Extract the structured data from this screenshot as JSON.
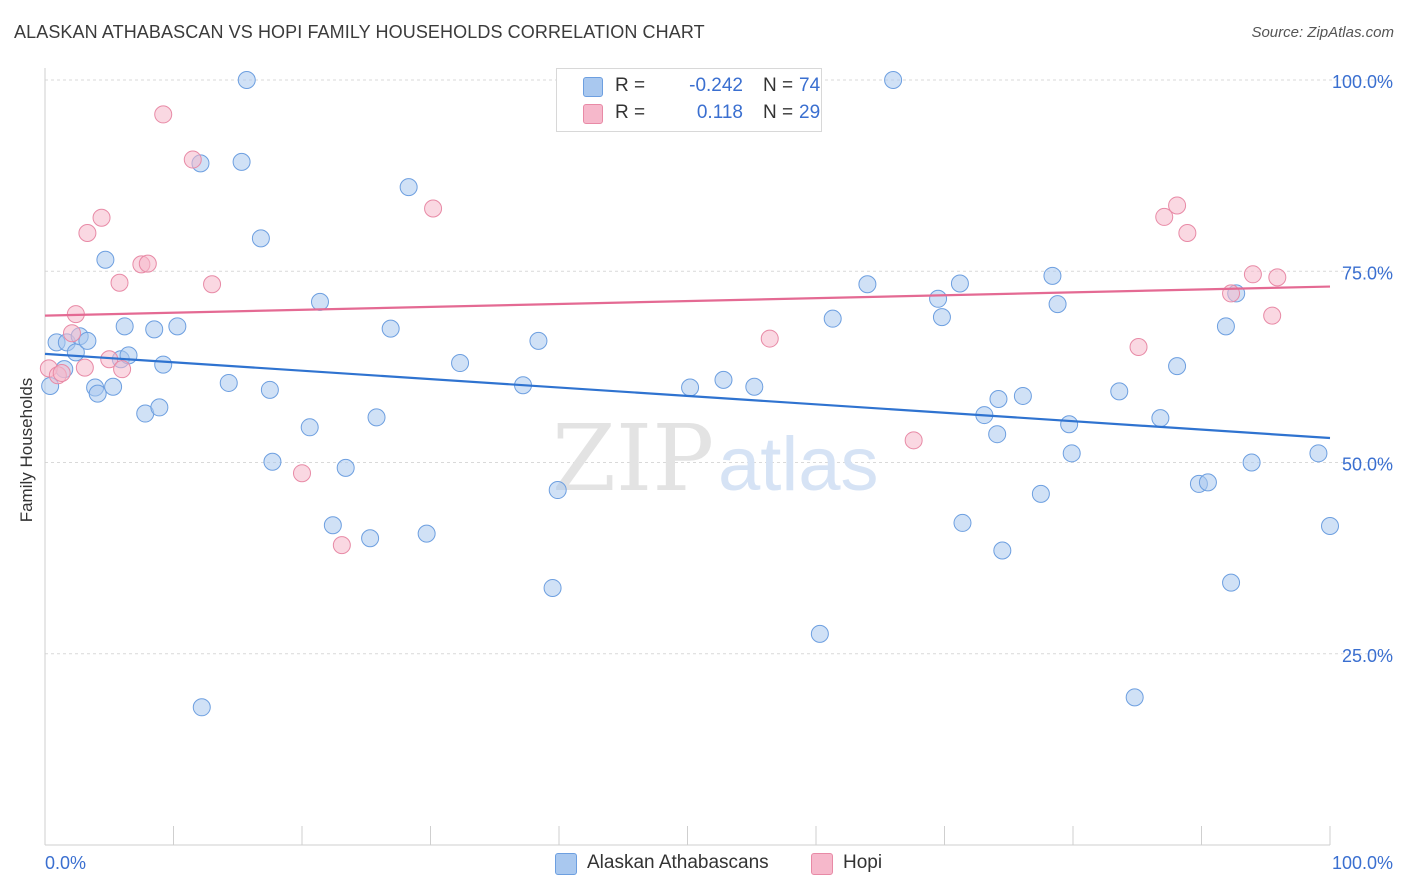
{
  "title": "ALASKAN ATHABASCAN VS HOPI FAMILY HOUSEHOLDS CORRELATION CHART",
  "source": "Source: ZipAtlas.com",
  "watermark": {
    "part1": "ZIP",
    "part2": "atlas"
  },
  "legend": {
    "rows": [
      {
        "r_label": "R =",
        "r_value": "-0.242",
        "n_label": "N =",
        "n_value": "74",
        "color": "#a9c8ef"
      },
      {
        "r_label": "R =",
        "r_value": "0.118",
        "n_label": "N =",
        "n_value": "29",
        "color": "#f6b8cb"
      }
    ]
  },
  "bottom_legend": [
    {
      "label": "Alaskan Athabascans",
      "color": "#a9c8ef"
    },
    {
      "label": "Hopi",
      "color": "#f6b8cb"
    }
  ],
  "chart_data": {
    "type": "scatter",
    "title": "ALASKAN ATHABASCAN VS HOPI FAMILY HOUSEHOLDS CORRELATION CHART",
    "xlabel": "",
    "ylabel": "Family Households",
    "xlim": [
      0,
      100
    ],
    "ylim": [
      0,
      100
    ],
    "x_tick_labels": {
      "left": "0.0%",
      "right": "100.0%"
    },
    "y_ticks": [
      {
        "value": 25,
        "label": "25.0%"
      },
      {
        "value": 50,
        "label": "50.0%"
      },
      {
        "value": 75,
        "label": "75.0%"
      },
      {
        "value": 100,
        "label": "100.0%"
      }
    ],
    "grid": true,
    "series": [
      {
        "name": "Alaskan Athabascans",
        "color": "#a9c8ef",
        "stroke": "#6d9fe0",
        "trend_color": "#2f73d0",
        "trend": {
          "x0": 0,
          "y0": 64.2,
          "x1": 100,
          "y1": 53.2
        },
        "points": [
          [
            0.4,
            60.0
          ],
          [
            0.9,
            65.7
          ],
          [
            1.5,
            62.2
          ],
          [
            1.7,
            65.7
          ],
          [
            2.4,
            64.4
          ],
          [
            2.7,
            66.5
          ],
          [
            3.3,
            65.9
          ],
          [
            3.9,
            59.8
          ],
          [
            4.1,
            59.0
          ],
          [
            4.7,
            76.5
          ],
          [
            5.3,
            59.9
          ],
          [
            5.9,
            63.5
          ],
          [
            6.2,
            67.8
          ],
          [
            6.5,
            64.0
          ],
          [
            7.8,
            56.4
          ],
          [
            8.5,
            67.4
          ],
          [
            8.9,
            57.2
          ],
          [
            9.2,
            62.8
          ],
          [
            10.3,
            67.8
          ],
          [
            12.1,
            89.1
          ],
          [
            12.2,
            18.0
          ],
          [
            14.3,
            60.4
          ],
          [
            15.3,
            89.3
          ],
          [
            15.7,
            100.0
          ],
          [
            16.8,
            79.3
          ],
          [
            17.5,
            59.5
          ],
          [
            17.7,
            50.1
          ],
          [
            20.6,
            54.6
          ],
          [
            21.4,
            71.0
          ],
          [
            22.4,
            41.8
          ],
          [
            23.4,
            49.3
          ],
          [
            25.3,
            40.1
          ],
          [
            25.8,
            55.9
          ],
          [
            26.9,
            67.5
          ],
          [
            28.3,
            86.0
          ],
          [
            29.7,
            40.7
          ],
          [
            32.3,
            63.0
          ],
          [
            37.2,
            60.1
          ],
          [
            38.4,
            65.9
          ],
          [
            39.9,
            46.4
          ],
          [
            39.5,
            33.6
          ],
          [
            50.2,
            59.8
          ],
          [
            52.8,
            60.8
          ],
          [
            55.2,
            59.9
          ],
          [
            60.3,
            27.6
          ],
          [
            61.3,
            68.8
          ],
          [
            64.0,
            73.3
          ],
          [
            66.0,
            100.0
          ],
          [
            69.5,
            71.4
          ],
          [
            69.8,
            69.0
          ],
          [
            71.2,
            73.4
          ],
          [
            71.4,
            42.1
          ],
          [
            73.1,
            56.2
          ],
          [
            74.1,
            53.7
          ],
          [
            74.5,
            38.5
          ],
          [
            74.2,
            58.3
          ],
          [
            76.1,
            58.7
          ],
          [
            77.5,
            45.9
          ],
          [
            78.4,
            74.4
          ],
          [
            78.8,
            70.7
          ],
          [
            79.7,
            55.0
          ],
          [
            79.9,
            51.2
          ],
          [
            83.6,
            59.3
          ],
          [
            86.8,
            55.8
          ],
          [
            88.1,
            62.6
          ],
          [
            89.8,
            47.2
          ],
          [
            90.5,
            47.4
          ],
          [
            91.9,
            67.8
          ],
          [
            92.3,
            34.3
          ],
          [
            92.7,
            72.1
          ],
          [
            93.9,
            50.0
          ],
          [
            84.8,
            19.3
          ],
          [
            99.1,
            51.2
          ],
          [
            100.0,
            41.7
          ]
        ]
      },
      {
        "name": "Hopi",
        "color": "#f6b8cb",
        "stroke": "#e88aa6",
        "trend_color": "#e46a93",
        "trend": {
          "x0": 0,
          "y0": 69.2,
          "x1": 100,
          "y1": 73.0
        },
        "points": [
          [
            0.3,
            62.3
          ],
          [
            1.0,
            61.4
          ],
          [
            1.3,
            61.7
          ],
          [
            2.1,
            66.9
          ],
          [
            2.4,
            69.4
          ],
          [
            3.1,
            62.4
          ],
          [
            3.3,
            80.0
          ],
          [
            4.4,
            82.0
          ],
          [
            5.0,
            63.5
          ],
          [
            5.8,
            73.5
          ],
          [
            6.0,
            62.2
          ],
          [
            7.5,
            75.9
          ],
          [
            8.0,
            76.0
          ],
          [
            9.2,
            95.5
          ],
          [
            11.5,
            89.6
          ],
          [
            13.0,
            73.3
          ],
          [
            20.0,
            48.6
          ],
          [
            23.1,
            39.2
          ],
          [
            30.2,
            83.2
          ],
          [
            56.4,
            66.2
          ],
          [
            67.6,
            52.9
          ],
          [
            85.1,
            65.1
          ],
          [
            87.1,
            82.1
          ],
          [
            88.1,
            83.6
          ],
          [
            88.9,
            80.0
          ],
          [
            92.3,
            72.1
          ],
          [
            94.0,
            74.6
          ],
          [
            95.5,
            69.2
          ],
          [
            95.9,
            74.2
          ]
        ]
      }
    ]
  }
}
